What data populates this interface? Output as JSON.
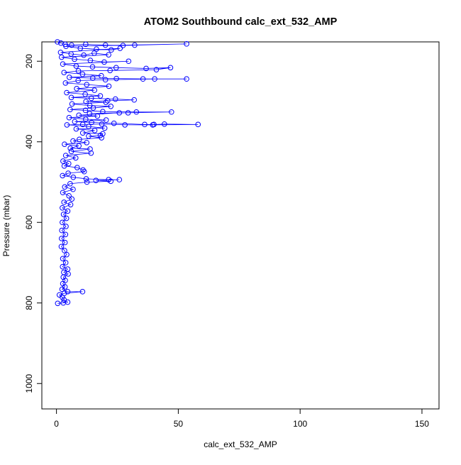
{
  "chart_data": {
    "type": "scatter",
    "title": "ATOM2 Southbound calc_ext_532_AMP",
    "xlabel": "calc_ext_532_AMP",
    "ylabel": "Pressure (mbar)",
    "xlim": [
      -6,
      157
    ],
    "ylim": [
      1063,
      152
    ],
    "y_reversed": true,
    "x_ticks": [
      0,
      50,
      100,
      150
    ],
    "y_ticks": [
      200,
      400,
      600,
      800,
      1000
    ],
    "x_tick_labels": [
      "0",
      "50",
      "100",
      "150"
    ],
    "y_tick_labels": [
      "200",
      "400",
      "600",
      "800",
      "1000"
    ],
    "grid": false,
    "legend": "none",
    "series": [
      {
        "color": "#0000ff",
        "style": "line+points",
        "points": [
          [
            0.4,
            152
          ],
          [
            1.8,
            155
          ],
          [
            3.6,
            158
          ],
          [
            6.2,
            160
          ],
          [
            12.0,
            158
          ],
          [
            20.1,
            160
          ],
          [
            27.3,
            161
          ],
          [
            32.1,
            160
          ],
          [
            53.4,
            157
          ],
          [
            3.9,
            163
          ],
          [
            9.8,
            168
          ],
          [
            16.4,
            170
          ],
          [
            22.5,
            172
          ],
          [
            26.1,
            168
          ],
          [
            1.7,
            178
          ],
          [
            6.0,
            182
          ],
          [
            11.2,
            185
          ],
          [
            15.5,
            180
          ],
          [
            21.4,
            184
          ],
          [
            2.1,
            190
          ],
          [
            7.4,
            195
          ],
          [
            13.9,
            198
          ],
          [
            19.6,
            202
          ],
          [
            29.6,
            200
          ],
          [
            2.6,
            207
          ],
          [
            8.1,
            212
          ],
          [
            14.8,
            214
          ],
          [
            24.5,
            216
          ],
          [
            36.8,
            218
          ],
          [
            46.8,
            216
          ],
          [
            41.0,
            221
          ],
          [
            22.0,
            223
          ],
          [
            9.0,
            224
          ],
          [
            3.1,
            228
          ],
          [
            10.7,
            232
          ],
          [
            18.4,
            236
          ],
          [
            5.3,
            240
          ],
          [
            14.9,
            242
          ],
          [
            24.6,
            243
          ],
          [
            35.5,
            244
          ],
          [
            53.4,
            244
          ],
          [
            40.3,
            244
          ],
          [
            20.1,
            246
          ],
          [
            8.9,
            248
          ],
          [
            3.7,
            254
          ],
          [
            12.4,
            258
          ],
          [
            21.5,
            262
          ],
          [
            8.3,
            268
          ],
          [
            15.6,
            272
          ],
          [
            4.2,
            278
          ],
          [
            11.8,
            282
          ],
          [
            18.0,
            286
          ],
          [
            6.1,
            290
          ],
          [
            14.3,
            292
          ],
          [
            24.2,
            294
          ],
          [
            31.9,
            296
          ],
          [
            21.0,
            298
          ],
          [
            12.1,
            300
          ],
          [
            20.3,
            302
          ],
          [
            6.4,
            306
          ],
          [
            13.7,
            310
          ],
          [
            22.3,
            312
          ],
          [
            15.1,
            316
          ],
          [
            5.6,
            320
          ],
          [
            11.9,
            322
          ],
          [
            19.0,
            325
          ],
          [
            32.8,
            326
          ],
          [
            47.2,
            326
          ],
          [
            29.4,
            328
          ],
          [
            13.6,
            330
          ],
          [
            25.8,
            328
          ],
          [
            9.2,
            334
          ],
          [
            16.8,
            336
          ],
          [
            5.2,
            340
          ],
          [
            12.0,
            344
          ],
          [
            20.4,
            346
          ],
          [
            7.5,
            350
          ],
          [
            14.4,
            352
          ],
          [
            23.6,
            354
          ],
          [
            36.2,
            357
          ],
          [
            40.0,
            357
          ],
          [
            44.3,
            356
          ],
          [
            58.1,
            357
          ],
          [
            39.5,
            358
          ],
          [
            28.1,
            358
          ],
          [
            18.6,
            356
          ],
          [
            10.8,
            357
          ],
          [
            4.3,
            358
          ],
          [
            13.2,
            362
          ],
          [
            19.8,
            366
          ],
          [
            8.1,
            368
          ],
          [
            15.7,
            372
          ],
          [
            10.8,
            378
          ],
          [
            19.0,
            380
          ],
          [
            18.0,
            384
          ],
          [
            13.2,
            386
          ],
          [
            18.5,
            390
          ],
          [
            9.4,
            394
          ],
          [
            6.8,
            398
          ],
          [
            12.4,
            402
          ],
          [
            3.3,
            406
          ],
          [
            9.2,
            410
          ],
          [
            5.7,
            416
          ],
          [
            13.8,
            418
          ],
          [
            6.1,
            424
          ],
          [
            14.2,
            428
          ],
          [
            3.8,
            434
          ],
          [
            7.9,
            440
          ],
          [
            2.7,
            448
          ],
          [
            5.0,
            454
          ],
          [
            3.2,
            460
          ],
          [
            8.5,
            464
          ],
          [
            10.9,
            470
          ],
          [
            11.4,
            474
          ],
          [
            4.8,
            478
          ],
          [
            2.5,
            484
          ],
          [
            6.9,
            488
          ],
          [
            12.2,
            492
          ],
          [
            21.4,
            494
          ],
          [
            25.8,
            494
          ],
          [
            16.2,
            496
          ],
          [
            22.3,
            498
          ],
          [
            12.5,
            500
          ],
          [
            5.6,
            504
          ],
          [
            3.4,
            512
          ],
          [
            6.8,
            518
          ],
          [
            2.6,
            526
          ],
          [
            5.1,
            534
          ],
          [
            6.3,
            542
          ],
          [
            3.1,
            550
          ],
          [
            5.8,
            556
          ],
          [
            2.4,
            564
          ],
          [
            4.6,
            572
          ],
          [
            2.9,
            580
          ],
          [
            4.1,
            590
          ],
          [
            2.4,
            600
          ],
          [
            3.9,
            610
          ],
          [
            2.2,
            620
          ],
          [
            3.7,
            630
          ],
          [
            2.1,
            640
          ],
          [
            3.5,
            650
          ],
          [
            2.0,
            660
          ],
          [
            3.3,
            670
          ],
          [
            4.2,
            680
          ],
          [
            2.6,
            690
          ],
          [
            3.8,
            700
          ],
          [
            2.5,
            710
          ],
          [
            4.6,
            716
          ],
          [
            3.0,
            724
          ],
          [
            4.8,
            728
          ],
          [
            2.8,
            736
          ],
          [
            3.6,
            744
          ],
          [
            2.6,
            752
          ],
          [
            3.5,
            760
          ],
          [
            2.3,
            766
          ],
          [
            4.6,
            772
          ],
          [
            10.7,
            772
          ],
          [
            3.2,
            776
          ],
          [
            1.2,
            780
          ],
          [
            2.4,
            786
          ],
          [
            3.1,
            792
          ],
          [
            4.6,
            798
          ],
          [
            2.8,
            800
          ],
          [
            0.5,
            801
          ]
        ]
      }
    ]
  }
}
